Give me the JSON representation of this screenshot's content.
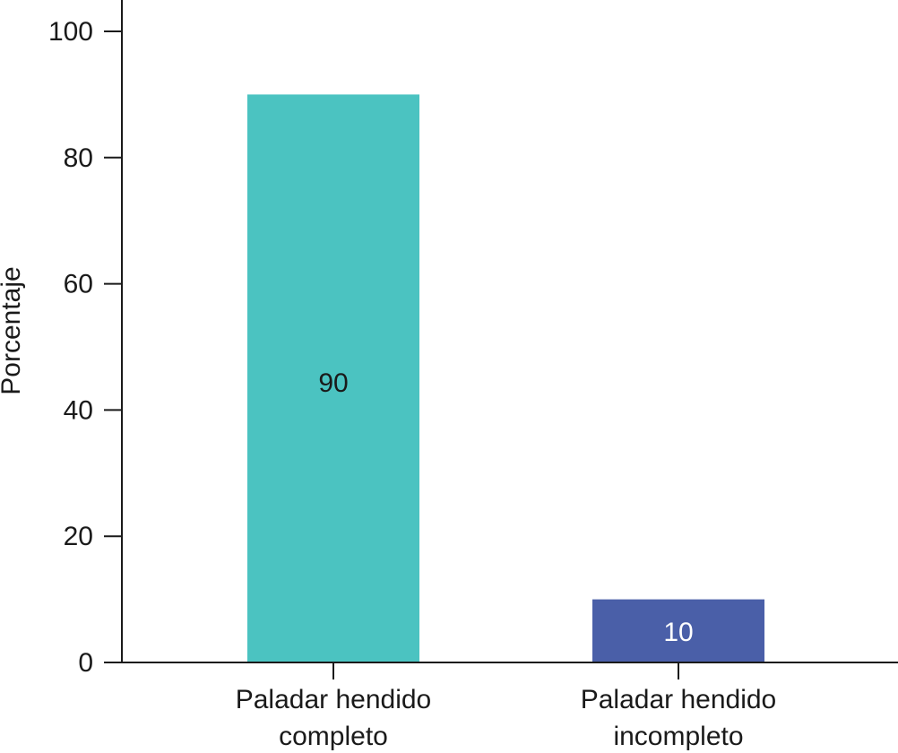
{
  "chart_data": {
    "type": "bar",
    "categories": [
      [
        "Paladar hendido",
        "completo"
      ],
      [
        "Paladar hendido",
        "incompleto"
      ]
    ],
    "values": [
      90,
      10
    ],
    "data_labels": [
      "90",
      "10"
    ],
    "bar_colors": [
      "#4bc3c1",
      "#4a5fa8"
    ],
    "data_label_colors": [
      "#1a1a1a",
      "#ffffff"
    ],
    "title": "",
    "xlabel": "",
    "ylabel": "Porcentaje",
    "ylim": [
      0,
      100
    ],
    "yticks": [
      0,
      20,
      40,
      60,
      80,
      100
    ],
    "ytick_labels": [
      "0",
      "20",
      "40",
      "60",
      "80",
      "100"
    ],
    "grid": false,
    "legend": "none"
  }
}
